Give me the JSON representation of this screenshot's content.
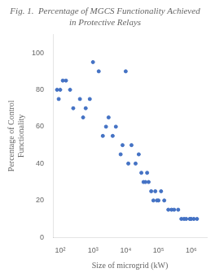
{
  "chart_data": {
    "type": "scatter",
    "title": "Fig. 1.  Percentage of MGCS Functionality Achieved in Protective Relays",
    "x_label": "Size of microgrid (kW)",
    "y_label": "Percentage of Control\nFunctionality",
    "x": [
      80,
      90,
      100,
      120,
      150,
      200,
      250,
      400,
      500,
      600,
      800,
      1000,
      1500,
      2000,
      2500,
      3000,
      4000,
      5000,
      7000,
      8000,
      10000,
      12000,
      15000,
      20000,
      25000,
      30000,
      35000,
      40000,
      45000,
      50000,
      60000,
      70000,
      80000,
      90000,
      100000,
      120000,
      150000,
      200000,
      250000,
      300000,
      400000,
      500000,
      600000,
      700000,
      900000,
      1000000,
      1200000,
      1500000
    ],
    "values": [
      80,
      75,
      80,
      85,
      85,
      80,
      70,
      75,
      65,
      70,
      75,
      95,
      90,
      55,
      60,
      65,
      55,
      60,
      45,
      50,
      90,
      40,
      50,
      40,
      45,
      35,
      30,
      30,
      35,
      30,
      25,
      20,
      25,
      20,
      20,
      25,
      20,
      15,
      15,
      15,
      15,
      10,
      10,
      10,
      10,
      10,
      10,
      10
    ],
    "color": "#4472C4",
    "log": "x",
    "xlim": [
      60,
      3000000
    ],
    "xticks": [
      {
        "value": 100,
        "label": "10²"
      },
      {
        "value": 1000,
        "label": "10³"
      },
      {
        "value": 10000,
        "label": "10⁴"
      },
      {
        "value": 100000,
        "label": "10⁵"
      },
      {
        "value": 1000000,
        "label": "10⁶"
      }
    ],
    "ylim": [
      0,
      110
    ],
    "yticks": [
      0,
      20,
      40,
      60,
      80,
      100
    ],
    "grid": false
  }
}
